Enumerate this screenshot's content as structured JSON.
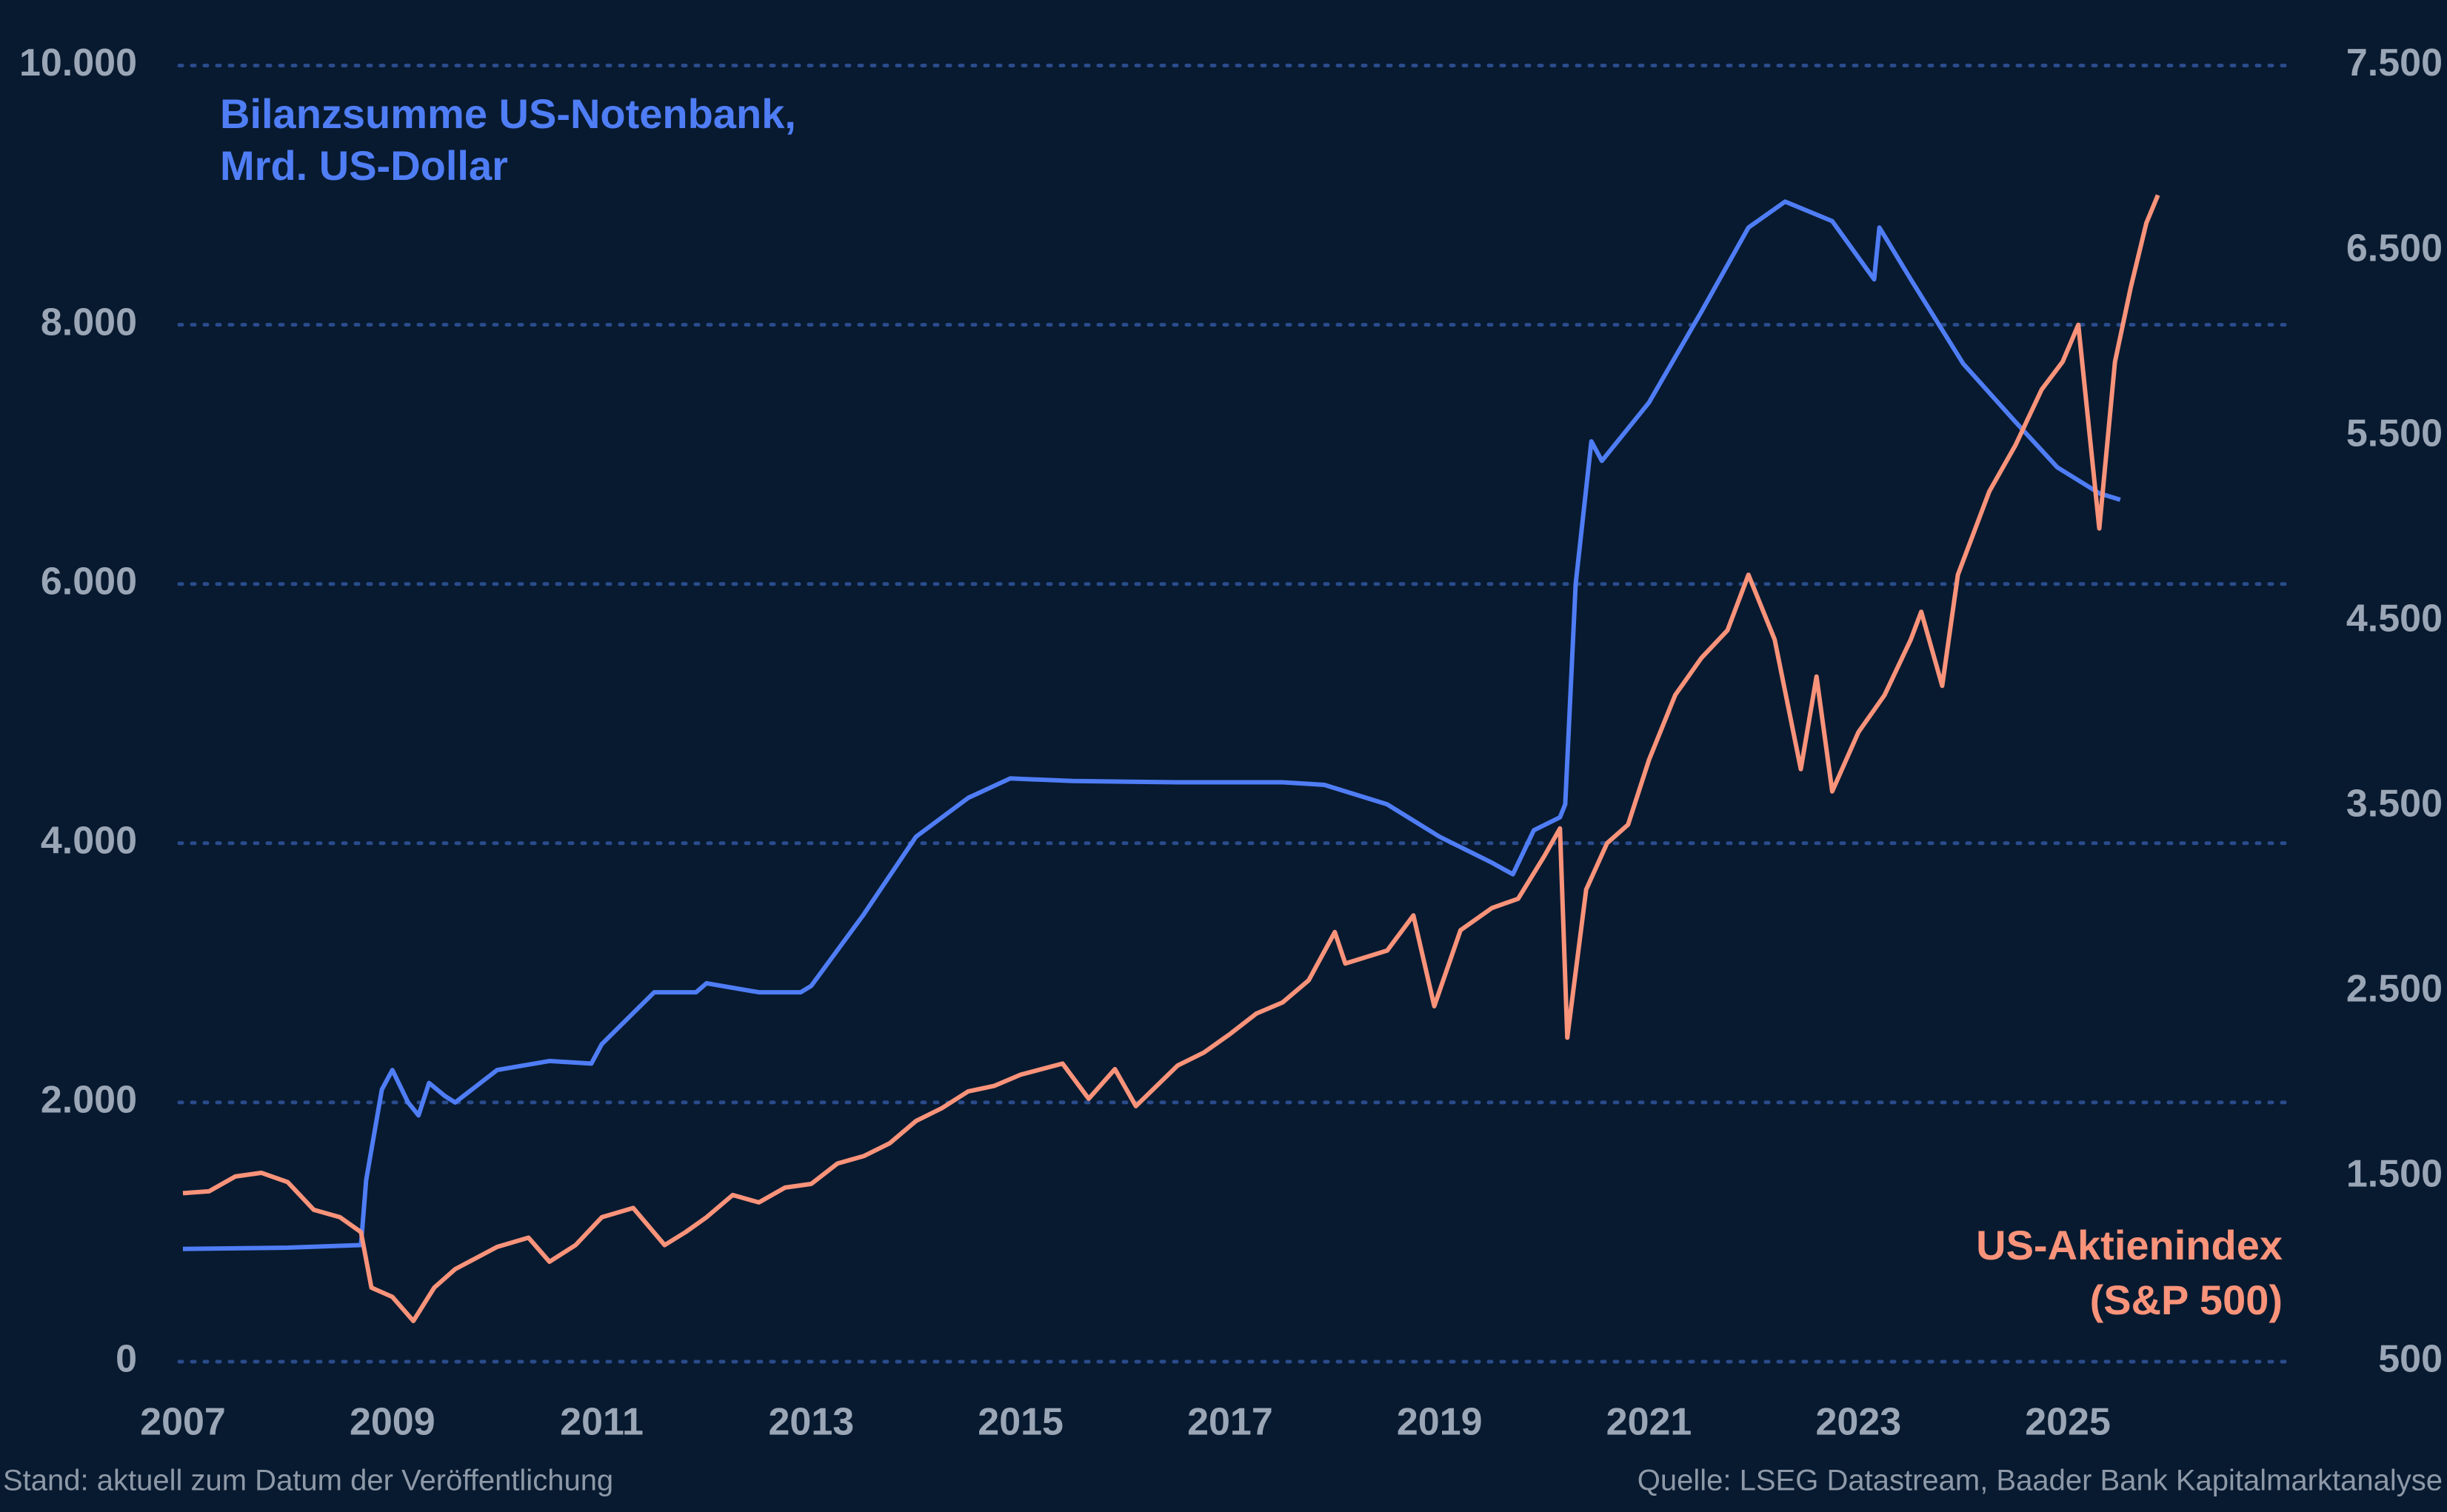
{
  "chart_data": {
    "type": "line",
    "xlim": [
      2007,
      2027.1
    ],
    "xticks": [
      2007,
      2009,
      2011,
      2013,
      2015,
      2017,
      2019,
      2021,
      2023,
      2025
    ],
    "ylim": [
      0,
      10000
    ],
    "yticks": [
      0,
      {
        "value": 2000,
        "label": "2.000"
      },
      {
        "value": 4000,
        "label": "4.000"
      },
      {
        "value": 6000,
        "label": "6.000"
      },
      {
        "value": 8000,
        "label": "8.000"
      },
      {
        "value": 10000,
        "label": "10.000"
      }
    ],
    "y2lim": [
      500,
      7500
    ],
    "y2ticks": [
      500,
      {
        "value": 1500,
        "label": "1.500"
      },
      {
        "value": 2500,
        "label": "2.500"
      },
      {
        "value": 3500,
        "label": "3.500"
      },
      {
        "value": 4500,
        "label": "4.500"
      },
      {
        "value": 5500,
        "label": "5.500"
      },
      {
        "value": 6500,
        "label": "6.500"
      },
      {
        "value": 7500,
        "label": "7.500"
      }
    ],
    "grid": true,
    "series": [
      {
        "name": "Bilanzsumme US-Notenbank,",
        "unit_label": "Mrd. US-Dollar",
        "color": "#4f7df5",
        "x": [
          2007.0,
          2008.0,
          2008.7,
          2008.75,
          2008.9,
          2009.0,
          2009.15,
          2009.25,
          2009.35,
          2009.5,
          2009.6,
          2010.0,
          2010.5,
          2010.9,
          2011.0,
          2011.5,
          2011.9,
          2012.0,
          2012.5,
          2012.9,
          2013.0,
          2013.5,
          2014.0,
          2014.5,
          2014.9,
          2015.5,
          2016.5,
          2017.5,
          2017.9,
          2018.5,
          2019.0,
          2019.5,
          2019.7,
          2019.9,
          2020.15,
          2020.2,
          2020.3,
          2020.45,
          2020.55,
          2021.0,
          2021.5,
          2021.95,
          2022.3,
          2022.75,
          2023.15,
          2023.2,
          2023.5,
          2024.0,
          2024.5,
          2024.9,
          2025.3,
          2025.5
        ],
        "values": [
          870,
          880,
          900,
          1400,
          2100,
          2250,
          2000,
          1900,
          2150,
          2050,
          2000,
          2250,
          2320,
          2300,
          2450,
          2850,
          2850,
          2920,
          2850,
          2850,
          2900,
          3450,
          4050,
          4350,
          4500,
          4480,
          4470,
          4470,
          4450,
          4300,
          4050,
          3850,
          3760,
          4100,
          4200,
          4300,
          6000,
          7100,
          6950,
          7400,
          8100,
          8750,
          8950,
          8800,
          8350,
          8750,
          8350,
          7700,
          7250,
          6900,
          6700,
          6650
        ]
      },
      {
        "name": "US-Aktienindex",
        "unit_label": "(S&P 500)",
        "color": "#f9937a",
        "axis": "y2",
        "x": [
          2007.0,
          2007.25,
          2007.5,
          2007.75,
          2008.0,
          2008.25,
          2008.5,
          2008.7,
          2008.8,
          2009.0,
          2009.2,
          2009.4,
          2009.6,
          2009.8,
          2010.0,
          2010.3,
          2010.5,
          2010.75,
          2011.0,
          2011.3,
          2011.6,
          2011.8,
          2012.0,
          2012.25,
          2012.5,
          2012.75,
          2013.0,
          2013.25,
          2013.5,
          2013.75,
          2014.0,
          2014.25,
          2014.5,
          2014.75,
          2015.0,
          2015.4,
          2015.65,
          2015.9,
          2016.1,
          2016.5,
          2016.75,
          2017.0,
          2017.25,
          2017.5,
          2017.75,
          2018.0,
          2018.1,
          2018.5,
          2018.75,
          2018.95,
          2019.2,
          2019.5,
          2019.75,
          2020.0,
          2020.15,
          2020.22,
          2020.4,
          2020.6,
          2020.8,
          2021.0,
          2021.25,
          2021.5,
          2021.75,
          2021.95,
          2022.2,
          2022.45,
          2022.6,
          2022.75,
          2023.0,
          2023.25,
          2023.5,
          2023.6,
          2023.8,
          2023.95,
          2024.25,
          2024.5,
          2024.75,
          2024.95,
          2025.1,
          2025.3,
          2025.45,
          2025.6,
          2025.75,
          2025.86
        ],
        "values": [
          1410,
          1420,
          1500,
          1520,
          1470,
          1320,
          1280,
          1200,
          900,
          850,
          720,
          900,
          1000,
          1060,
          1120,
          1170,
          1040,
          1130,
          1280,
          1330,
          1130,
          1200,
          1280,
          1400,
          1360,
          1440,
          1460,
          1570,
          1610,
          1680,
          1800,
          1870,
          1960,
          1990,
          2050,
          2110,
          1920,
          2080,
          1880,
          2100,
          2170,
          2270,
          2380,
          2440,
          2560,
          2820,
          2650,
          2720,
          2910,
          2420,
          2830,
          2950,
          3000,
          3230,
          3380,
          2250,
          3050,
          3300,
          3400,
          3750,
          4100,
          4300,
          4450,
          4750,
          4400,
          3700,
          4200,
          3580,
          3900,
          4100,
          4400,
          4550,
          4150,
          4750,
          5200,
          5450,
          5750,
          5900,
          6100,
          5000,
          5900,
          6300,
          6650,
          6800
        ]
      }
    ],
    "note": "Stand: aktuell zum Datum der Veröffentlichung",
    "source": "Quelle: LSEG Datastream, Baader Bank Kapitalmarktanalyse"
  }
}
